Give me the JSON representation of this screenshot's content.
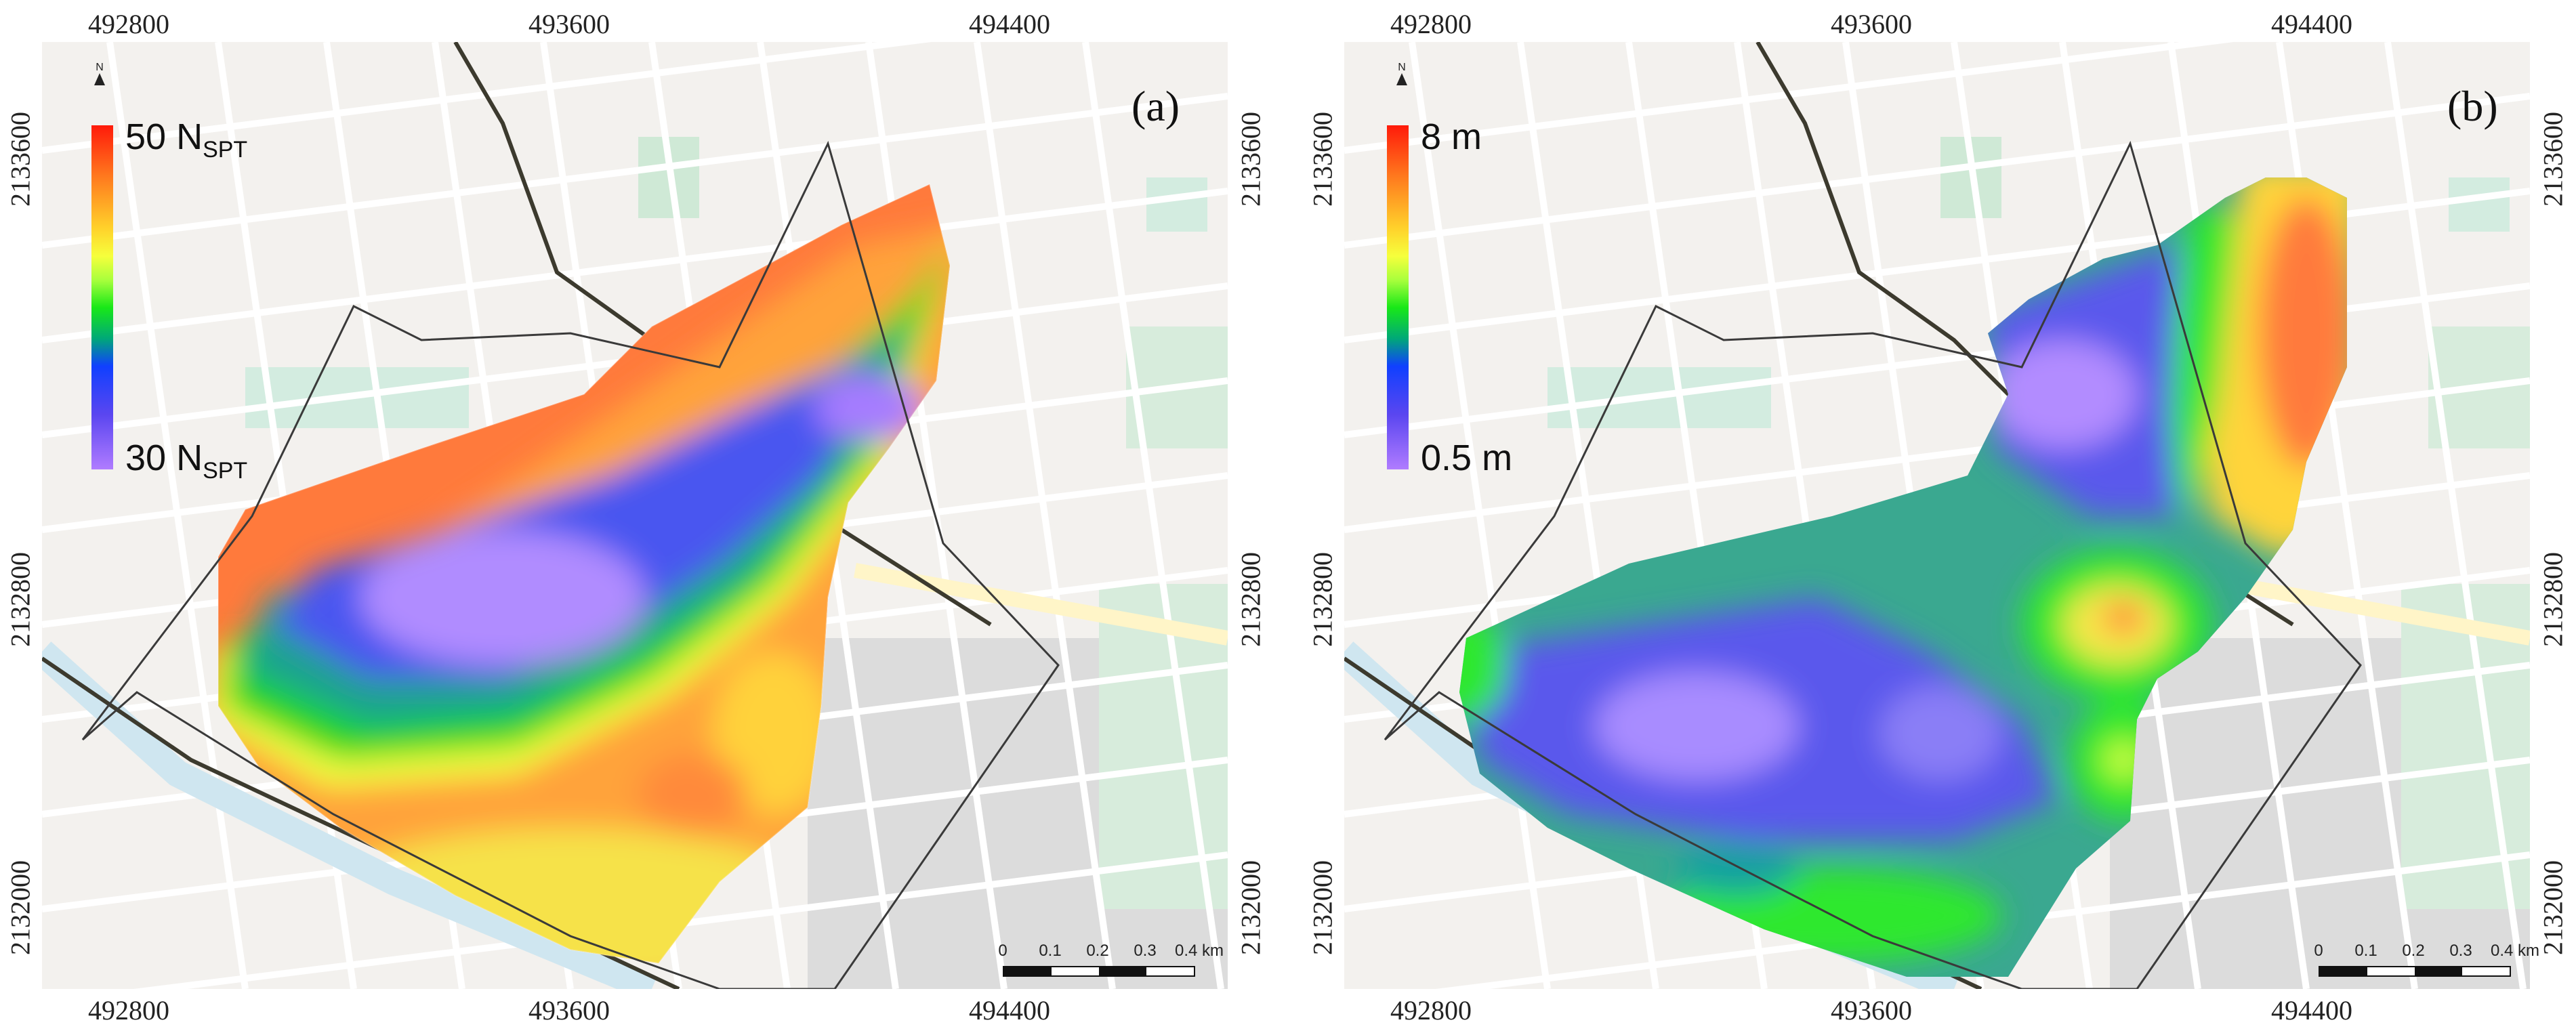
{
  "panels": [
    {
      "id": "a",
      "label": "(a)",
      "legend": {
        "max_value": "50 N",
        "max_sub": "SPT",
        "min_value": "30 N",
        "min_sub": "SPT"
      },
      "x_ticks": [
        "492800",
        "493600",
        "494400"
      ],
      "y_ticks": [
        "2133600",
        "2132800",
        "2132000"
      ]
    },
    {
      "id": "b",
      "label": "(b)",
      "legend": {
        "max_value": "8 m",
        "max_sub": "",
        "min_value": "0.5 m",
        "min_sub": ""
      },
      "x_ticks": [
        "492800",
        "493600",
        "494400"
      ],
      "y_ticks": [
        "2133600",
        "2132800",
        "2132000"
      ]
    }
  ],
  "north_label": "N",
  "scalebar": {
    "ticks": [
      "0",
      "0.1",
      "0.2",
      "0.3",
      "0.4 km"
    ]
  },
  "colors": {
    "max": "#ff1a0a",
    "high": "#ff7a3c",
    "mid_high": "#ffd22b",
    "mid": "#18e818",
    "mid_low": "#1040ff",
    "min": "#b07cff",
    "map_background": "#f3f1ee",
    "street": "#ffffff",
    "park": "#cde9d6",
    "industrial": "#d9d9d9",
    "boundary": "#3a3a3a"
  },
  "icons": [
    "north-arrow-icon"
  ]
}
